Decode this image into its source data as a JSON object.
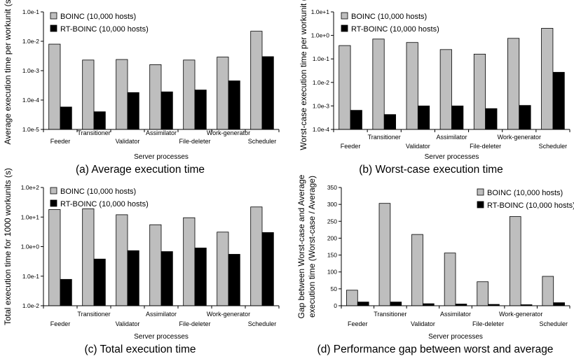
{
  "chart_data": [
    {
      "type": "bar",
      "caption": "(a) Average execution time",
      "ylabel": "Average execution time per workunit (s)",
      "xlabel": "Server processes",
      "scale": "log",
      "ylim": [
        1e-05,
        0.1
      ],
      "yticks": [
        "1.0e-5",
        "1.0e-4",
        "1.0e-3",
        "1.0e-2",
        "1.0e-1"
      ],
      "categories": [
        "Feeder",
        "Transitioner",
        "Validator",
        "Assimilator",
        "File-deleter",
        "Work-generator",
        "Scheduler"
      ],
      "series": [
        {
          "name": "BOINC (10,000 hosts)",
          "color": "#bebebe",
          "values": [
            0.008,
            0.0023,
            0.0024,
            0.0016,
            0.0023,
            0.0029,
            0.022
          ]
        },
        {
          "name": "RT-BOINC (10,000 hosts)",
          "color": "#000000",
          "values": [
            5.8e-05,
            4e-05,
            0.00018,
            0.00019,
            0.00022,
            0.00045,
            0.003
          ]
        }
      ],
      "legend": "top-left"
    },
    {
      "type": "bar",
      "caption": "(b) Worst-case execution time",
      "ylabel": "Worst-case execution time per workunit (s)",
      "xlabel": "Server processes",
      "scale": "log",
      "ylim": [
        0.0001,
        10
      ],
      "yticks": [
        "1.0e-4",
        "1.0e-3",
        "1.0e-2",
        "1.0e-1",
        "1.0e+0",
        "1.0e+1"
      ],
      "categories": [
        "Feeder",
        "Transitioner",
        "Validator",
        "Assimilator",
        "File-deleter",
        "Work-generator",
        "Scheduler"
      ],
      "series": [
        {
          "name": "BOINC (10,000 hosts)",
          "color": "#bebebe",
          "values": [
            0.37,
            0.7,
            0.5,
            0.25,
            0.16,
            0.75,
            2.0
          ]
        },
        {
          "name": "RT-BOINC (10,000 hosts)",
          "color": "#000000",
          "values": [
            0.00065,
            0.00043,
            0.001,
            0.001,
            0.00077,
            0.00105,
            0.027
          ]
        }
      ],
      "legend": "top-left"
    },
    {
      "type": "bar",
      "caption": "(c) Total execution time",
      "ylabel": "Total execution time for 1000 workunits (s)",
      "xlabel": "Server processes",
      "scale": "log",
      "ylim": [
        0.01,
        100
      ],
      "yticks": [
        "1.0e-2",
        "1.0e-1",
        "1.0e+0",
        "1.0e+1",
        "1.0e+2"
      ],
      "categories": [
        "Feeder",
        "Transitioner",
        "Validator",
        "Assimilator",
        "File-deleter",
        "Work-generator",
        "Scheduler"
      ],
      "series": [
        {
          "name": "BOINC (10,000 hosts)",
          "color": "#bebebe",
          "values": [
            18,
            19,
            12,
            5.5,
            9.5,
            3.1,
            22
          ]
        },
        {
          "name": "RT-BOINC (10,000 hosts)",
          "color": "#000000",
          "values": [
            0.078,
            0.38,
            0.73,
            0.68,
            0.9,
            0.55,
            3.0
          ]
        }
      ],
      "legend": "top-left"
    },
    {
      "type": "bar",
      "caption": "(d) Performance gap between worst and average",
      "ylabel": [
        "Gap between Worst-case and Average",
        "execution time (Worst-case / Average)"
      ],
      "xlabel": "Server processes",
      "scale": "linear",
      "ylim": [
        0,
        350
      ],
      "yticks": [
        "0",
        "50",
        "100",
        "150",
        "200",
        "250",
        "300",
        "350"
      ],
      "categories": [
        "Feeder",
        "Transitioner",
        "Validator",
        "Assimilator",
        "File-deleter",
        "Work-generator",
        "Scheduler"
      ],
      "series": [
        {
          "name": "BOINC (10,000 hosts)",
          "color": "#bebebe",
          "values": [
            46,
            303,
            211,
            156,
            71,
            264,
            87
          ]
        },
        {
          "name": "RT-BOINC (10,000 hosts)",
          "color": "#000000",
          "values": [
            11,
            11,
            6,
            5,
            4,
            3,
            9
          ]
        }
      ],
      "legend": "top-right"
    }
  ]
}
